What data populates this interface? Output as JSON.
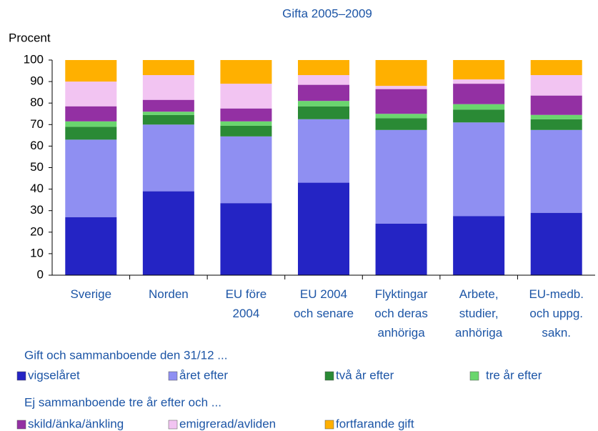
{
  "chart_data": {
    "type": "stacked_bar",
    "title": "Gifta 2005–2009",
    "y_label": "Procent",
    "categories": [
      "Sverige",
      "Norden",
      "EU före\n2004",
      "EU 2004\noch senare",
      "Flyktingar\noch deras\nanhöriga",
      "Arbete,\nstudier,\nanhöriga",
      "EU-medb.\noch uppg.\nsakn."
    ],
    "series": [
      {
        "name": "vigselåret",
        "color": "#2424c4",
        "values": [
          27,
          39,
          33.5,
          43,
          24,
          27.5,
          29
        ]
      },
      {
        "name": "året efter",
        "color": "#8f8ff2",
        "values": [
          36,
          31,
          31,
          29.5,
          43.5,
          43.5,
          38.5
        ]
      },
      {
        "name": "två år efter",
        "color": "#2a8a35",
        "values": [
          6,
          4.5,
          5,
          6,
          5.5,
          6,
          5
        ]
      },
      {
        "name": "tre år efter",
        "color": "#6ad66e",
        "values": [
          2.5,
          1.5,
          2,
          2.5,
          2,
          2.5,
          2
        ]
      },
      {
        "name": "skild/änka/änkling",
        "color": "#9330a3",
        "values": [
          7,
          5.5,
          6,
          7.5,
          11.5,
          9.5,
          9
        ]
      },
      {
        "name": "emigrerad/avliden",
        "color": "#f2c4f2",
        "values": [
          11.5,
          11.5,
          11.5,
          4.5,
          1.5,
          2,
          9.5
        ]
      },
      {
        "name": "fortfarande gift",
        "color": "#ffb000",
        "values": [
          10,
          7,
          11,
          7,
          12,
          9,
          7
        ]
      }
    ],
    "legend_titles": [
      "Gift och sammanboende den 31/12 ...",
      "Ej sammanboende tre år efter och ..."
    ],
    "ylim": [
      0,
      100
    ],
    "yticks": [
      0,
      10,
      20,
      30,
      40,
      50,
      60,
      70,
      80,
      90,
      100
    ],
    "grid": false
  }
}
